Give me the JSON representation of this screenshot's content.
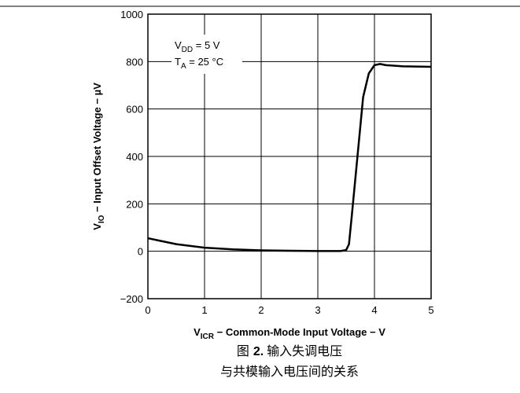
{
  "chart_data": {
    "type": "line",
    "x": [
      0,
      0.2,
      0.5,
      1,
      1.5,
      2,
      2.5,
      3,
      3.4,
      3.5,
      3.55,
      3.6,
      3.7,
      3.8,
      3.9,
      4,
      4.1,
      4.2,
      4.5,
      5
    ],
    "values": [
      55,
      45,
      30,
      15,
      8,
      4,
      2,
      1,
      1,
      5,
      30,
      150,
      400,
      650,
      750,
      785,
      790,
      785,
      780,
      778
    ],
    "color": "#000000",
    "xlim": [
      0,
      5
    ],
    "xticks": [
      0,
      1,
      2,
      3,
      4,
      5
    ],
    "ylim": [
      -200,
      1000
    ],
    "yticks": [
      {
        "value": -200,
        "label": "−200"
      },
      0,
      200,
      400,
      600,
      800,
      1000
    ],
    "grid": true,
    "xlabel": {
      "main": "V",
      "sub": "ICR",
      "rest": " − Common-Mode Input Voltage − V"
    },
    "ylabel": {
      "main": "V",
      "sub": "IO",
      "rest": " − Input Offset Voltage − µV"
    },
    "annotations": [
      {
        "main": "V",
        "sub": "DD",
        "rest": " = 5 V"
      },
      {
        "main": "T",
        "sub": "A",
        "rest": " = 25 °C"
      }
    ]
  },
  "caption": {
    "label": "图",
    "number": "2.",
    "title": "输入失调电压",
    "subtitle": "与共模输入电压间的关系"
  }
}
